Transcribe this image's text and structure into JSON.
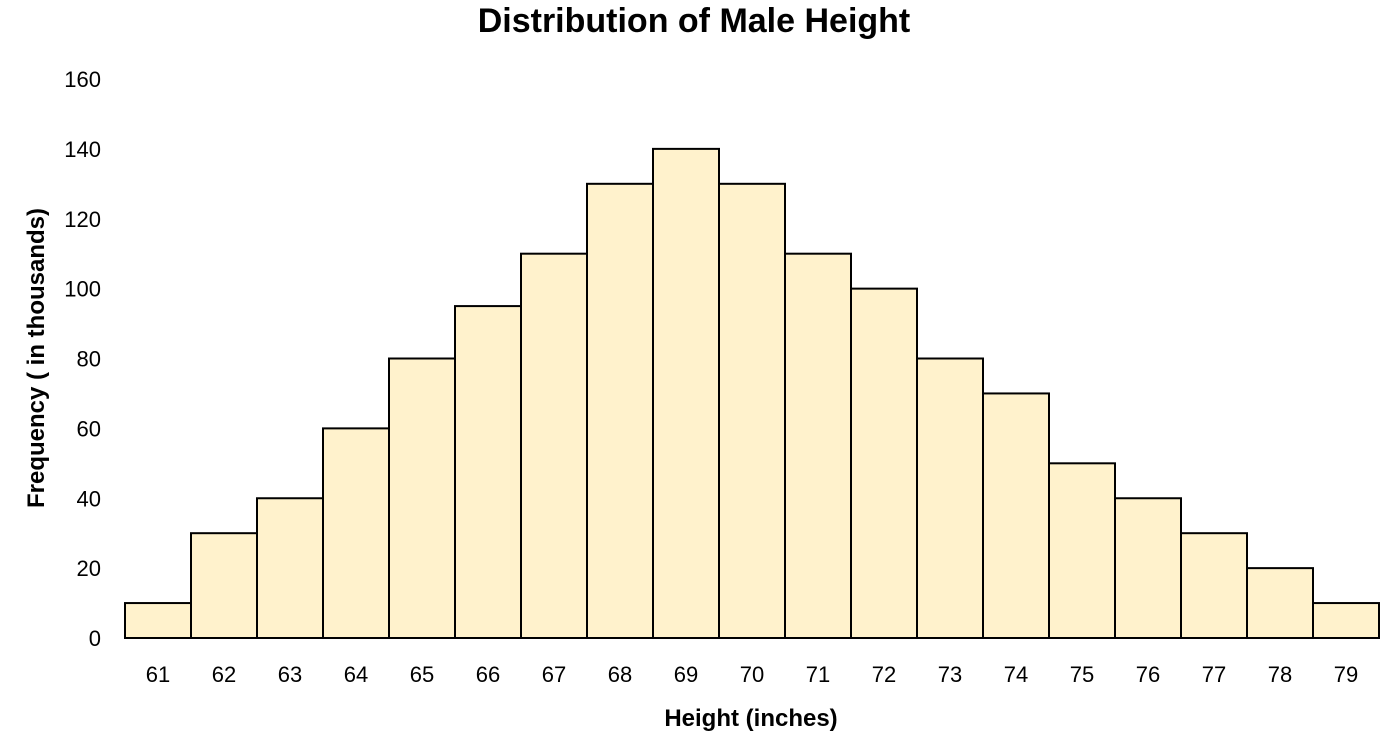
{
  "chart_data": {
    "type": "bar",
    "title": "Distribution of Male Height",
    "xlabel": "Height (inches)",
    "ylabel": "Frequency ( in thousands)",
    "categories": [
      "61",
      "62",
      "63",
      "64",
      "65",
      "66",
      "67",
      "68",
      "69",
      "70",
      "71",
      "72",
      "73",
      "74",
      "75",
      "76",
      "77",
      "78",
      "79"
    ],
    "values": [
      10,
      30,
      40,
      60,
      80,
      95,
      110,
      130,
      140,
      130,
      110,
      100,
      80,
      70,
      50,
      40,
      30,
      20,
      10
    ],
    "ylim": [
      0,
      160
    ],
    "yticks": [
      "0",
      "20",
      "40",
      "60",
      "80",
      "100",
      "120",
      "140",
      "160"
    ],
    "grid": false,
    "legend": "none",
    "bar_fill": "#fff2cc",
    "bar_stroke": "#000000",
    "bar_gap": 0
  }
}
